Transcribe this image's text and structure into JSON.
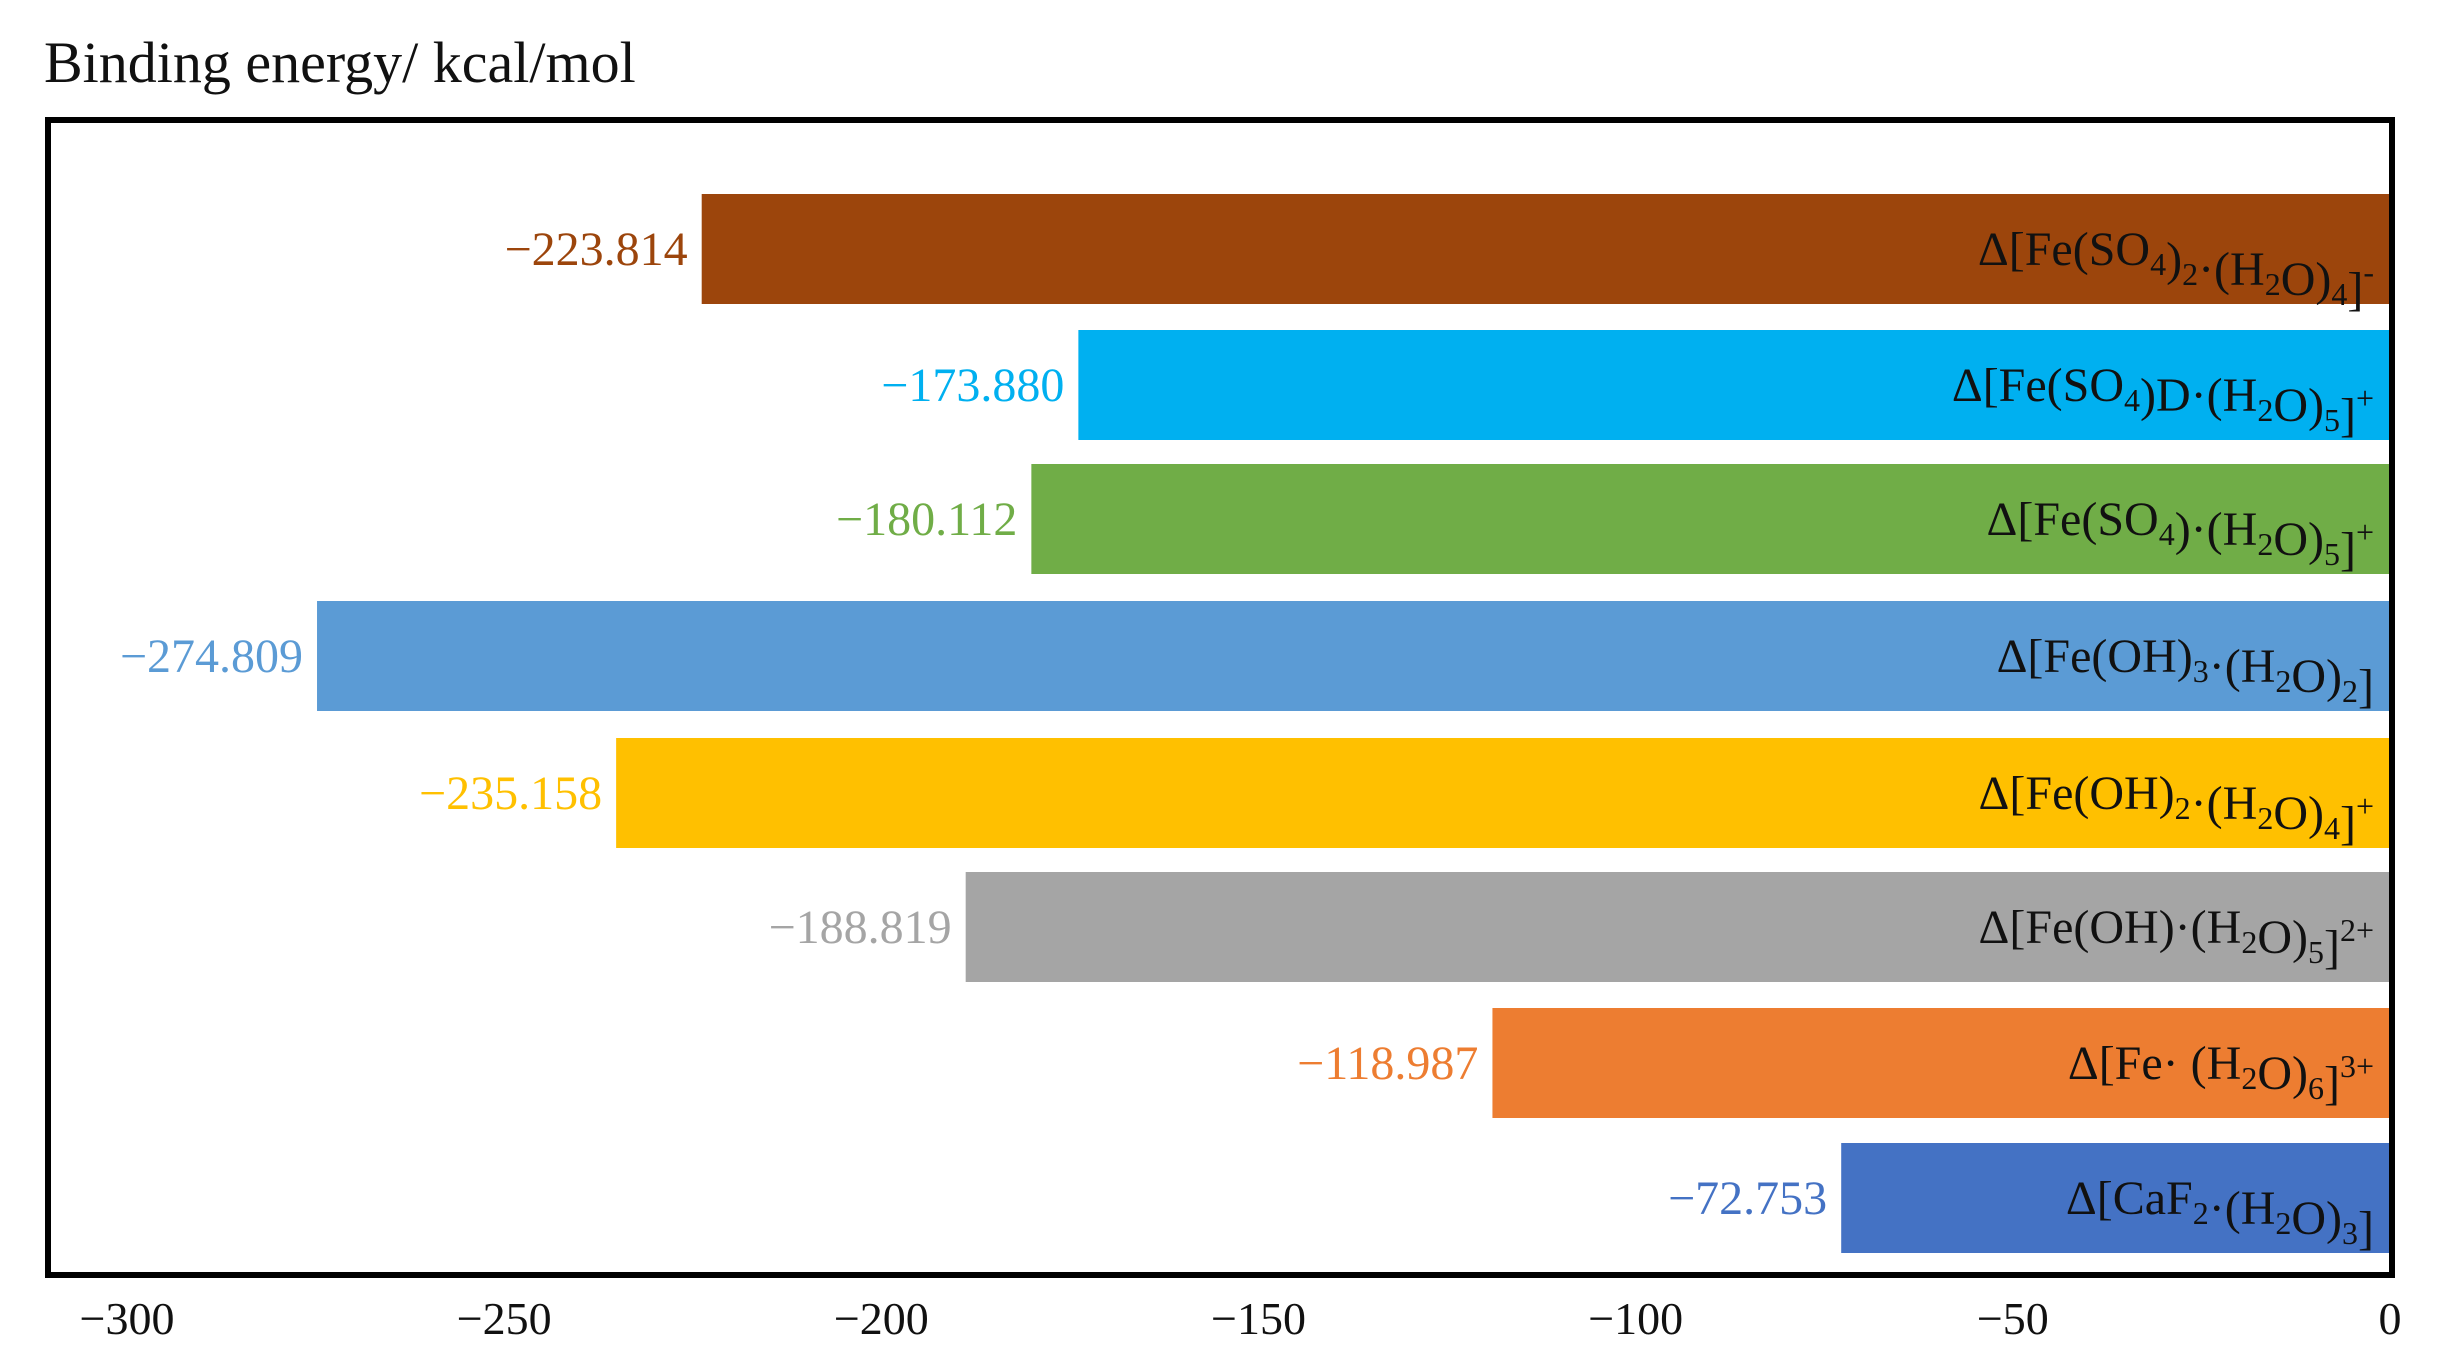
{
  "chart_data": {
    "type": "bar",
    "orientation": "horizontal",
    "title": "Binding energy/ kcal/mol",
    "xlim": [
      -300,
      0
    ],
    "xticks": [
      -300,
      -250,
      -200,
      -150,
      -100,
      -50,
      0
    ],
    "xtick_labels": [
      "−300",
      "−250",
      "−200",
      "−150",
      "−100",
      "−50",
      "0"
    ],
    "grid": false,
    "series": [
      {
        "category": "Δ[Fe(SO4)2·(H2O)4]-",
        "parts": [
          [
            "Δ[Fe(SO",
            "n"
          ],
          [
            "4",
            "sub"
          ],
          [
            ")",
            "n"
          ],
          [
            "2",
            "sub"
          ],
          [
            "·(H",
            "n"
          ],
          [
            "2",
            "sub"
          ],
          [
            "O)",
            "n"
          ],
          [
            "4",
            "sub"
          ],
          [
            "]",
            "n"
          ],
          [
            "-",
            "sup"
          ]
        ],
        "value": -223.814,
        "value_label": "−223.814",
        "color": "#9c450c"
      },
      {
        "category": "Δ[Fe(SO4)D·(H2O)5]+",
        "parts": [
          [
            "Δ[Fe(SO",
            "n"
          ],
          [
            "4",
            "sub"
          ],
          [
            ")D·(H",
            "n"
          ],
          [
            "2",
            "sub"
          ],
          [
            "O)",
            "n"
          ],
          [
            "5",
            "sub"
          ],
          [
            "]",
            "n"
          ],
          [
            "+",
            "sup"
          ]
        ],
        "value": -173.88,
        "value_label": "−173.880",
        "color": "#00b0f0"
      },
      {
        "category": "Δ[Fe(SO4)·(H2O)5]+",
        "parts": [
          [
            "Δ[Fe(SO",
            "n"
          ],
          [
            "4",
            "sub"
          ],
          [
            ")·(H",
            "n"
          ],
          [
            "2",
            "sub"
          ],
          [
            "O)",
            "n"
          ],
          [
            "5",
            "sub"
          ],
          [
            "]",
            "n"
          ],
          [
            "+",
            "sup"
          ]
        ],
        "value": -180.112,
        "value_label": "−180.112",
        "color": "#70ad47"
      },
      {
        "category": "Δ[Fe(OH)3·(H2O)2]",
        "parts": [
          [
            "Δ[Fe(OH)",
            "n"
          ],
          [
            "3",
            "sub"
          ],
          [
            "·(H",
            "n"
          ],
          [
            "2",
            "sub"
          ],
          [
            "O)",
            "n"
          ],
          [
            "2",
            "sub"
          ],
          [
            "]",
            "n"
          ]
        ],
        "value": -274.809,
        "value_label": "−274.809",
        "color": "#5b9bd5"
      },
      {
        "category": "Δ[Fe(OH)2·(H2O)4]+",
        "parts": [
          [
            "Δ[Fe(OH)",
            "n"
          ],
          [
            "2",
            "sub"
          ],
          [
            "·(H",
            "n"
          ],
          [
            "2",
            "sub"
          ],
          [
            "O)",
            "n"
          ],
          [
            "4",
            "sub"
          ],
          [
            "]",
            "n"
          ],
          [
            "+",
            "sup"
          ]
        ],
        "value": -235.158,
        "value_label": "−235.158",
        "color": "#ffc000"
      },
      {
        "category": "Δ[Fe(OH)·(H2O)5]2+",
        "parts": [
          [
            "Δ[Fe(OH)·(H",
            "n"
          ],
          [
            "2",
            "sub"
          ],
          [
            "O)",
            "n"
          ],
          [
            "5",
            "sub"
          ],
          [
            "]",
            "n"
          ],
          [
            "2+",
            "sup"
          ]
        ],
        "value": -188.819,
        "value_label": "−188.819",
        "color": "#a5a5a5"
      },
      {
        "category": "Δ[Fe· (H2O)6]3+",
        "parts": [
          [
            "Δ[Fe· (H",
            "n"
          ],
          [
            "2",
            "sub"
          ],
          [
            "O)",
            "n"
          ],
          [
            "6",
            "sub"
          ],
          [
            "]",
            "n"
          ],
          [
            "3+",
            "sup"
          ]
        ],
        "value": -118.987,
        "value_label": "−118.987",
        "color": "#ed7d31"
      },
      {
        "category": "Δ[CaF2·(H2O)3]",
        "parts": [
          [
            "Δ[CaF",
            "n"
          ],
          [
            "2",
            "sub"
          ],
          [
            "·(H",
            "n"
          ],
          [
            "2",
            "sub"
          ],
          [
            "O)",
            "n"
          ],
          [
            "3",
            "sub"
          ],
          [
            "]",
            "n"
          ]
        ],
        "value": -72.753,
        "value_label": "−72.753",
        "color": "#4472c4"
      }
    ],
    "frame_color": "#000000",
    "text_color": "#111111"
  }
}
